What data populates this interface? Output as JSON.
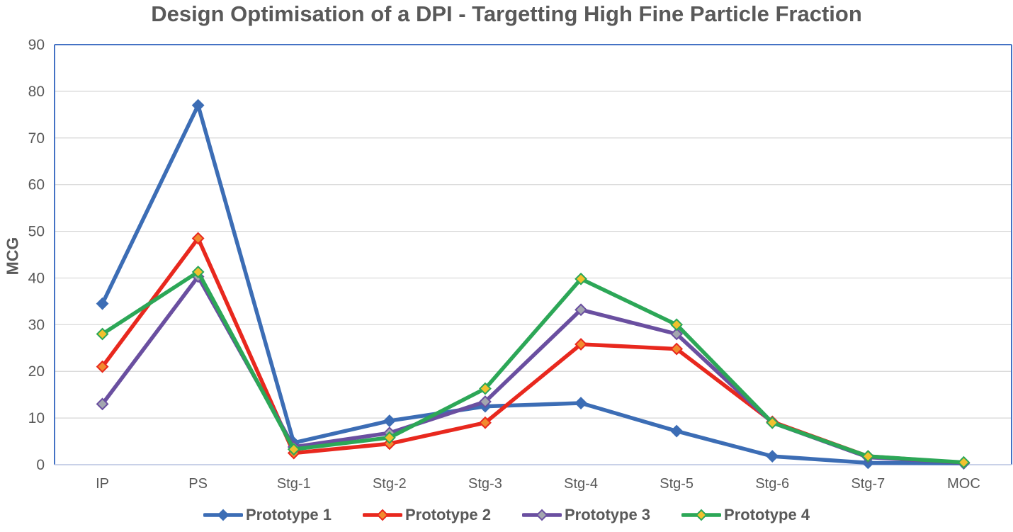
{
  "title": "Design Optimisation of a DPI - Targetting High Fine Particle Fraction",
  "colors": {
    "title_text": "#595959",
    "axis_text": "#595959",
    "gridline": "#D6D6D6",
    "plot_border": "#4472C4",
    "plot_border_bottom": "#C9D1E8",
    "background": "#FFFFFF"
  },
  "chart_data": {
    "type": "line",
    "title": "Design Optimisation of a DPI - Targetting High Fine Particle Fraction",
    "xlabel": "",
    "ylabel": "MCG",
    "ylim": [
      0,
      90
    ],
    "ytick_step": 10,
    "ytick_labels": [
      "0",
      "10",
      "20",
      "30",
      "40",
      "50",
      "60",
      "70",
      "80",
      "90"
    ],
    "grid": true,
    "legend_position": "bottom",
    "marker_shape": "diamond",
    "categories": [
      "IP",
      "PS",
      "Stg-1",
      "Stg-2",
      "Stg-3",
      "Stg-4",
      "Stg-5",
      "Stg-6",
      "Stg-7",
      "MOC"
    ],
    "series": [
      {
        "name": "Prototype 1",
        "color": "#3C6DB5",
        "marker_fill": "#3C6DB5",
        "values": [
          34.5,
          77,
          4.7,
          9.4,
          12.5,
          13.2,
          7.2,
          1.8,
          0.4,
          0.3
        ]
      },
      {
        "name": "Prototype 2",
        "color": "#E8281E",
        "marker_fill": "#F28A2E",
        "values": [
          21,
          48.5,
          2.5,
          4.5,
          9,
          25.8,
          24.8,
          9.2,
          1.8,
          0.4
        ]
      },
      {
        "name": "Prototype 3",
        "color": "#6A4FA0",
        "marker_fill": "#A3A6AF",
        "values": [
          13,
          40.3,
          3.8,
          6.8,
          13.5,
          33.2,
          28,
          9,
          1.6,
          0.4
        ]
      },
      {
        "name": "Prototype 4",
        "color": "#2CA757",
        "marker_fill": "#F2C12E",
        "values": [
          28,
          41.3,
          3.3,
          5.8,
          16.3,
          39.8,
          30,
          9,
          1.8,
          0.5
        ]
      }
    ]
  }
}
